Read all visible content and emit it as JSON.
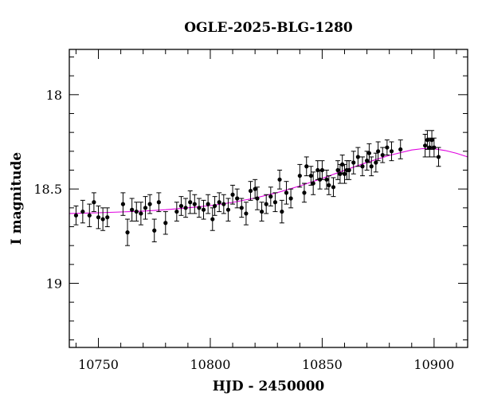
{
  "chart_data": {
    "type": "scatter",
    "title": "OGLE-2025-BLG-1280",
    "xlabel": "HJD - 2450000",
    "ylabel": "I magnitude",
    "xlim": [
      10737,
      10915
    ],
    "ylim": [
      19.34,
      17.76
    ],
    "y_inverted": true,
    "xticks_major": [
      10750,
      10800,
      10850,
      10900
    ],
    "xtick_labels": [
      "10750",
      "10800",
      "10850",
      "10900"
    ],
    "xticks_minor_step": 10,
    "yticks_major": [
      18,
      18.5,
      19
    ],
    "ytick_labels": [
      "18",
      "18.5",
      "19"
    ],
    "yticks_minor_step": 0.1,
    "grid": false,
    "colors": {
      "points": "#000000",
      "model": "#e000e0"
    },
    "series": [
      {
        "kind": "points_with_errorbars",
        "x": [
          10740,
          10743,
          10746,
          10748,
          10750,
          10752,
          10754,
          10761,
          10763,
          10765,
          10767,
          10769,
          10771,
          10773,
          10775,
          10777,
          10780,
          10785,
          10787,
          10789,
          10791,
          10793,
          10795,
          10797,
          10799,
          10801,
          10802,
          10804,
          10806,
          10808,
          10810,
          10812,
          10814,
          10816,
          10818,
          10820,
          10821,
          10823,
          10825,
          10827,
          10829,
          10831,
          10832,
          10834,
          10836,
          10840,
          10842,
          10843,
          10845,
          10846,
          10848,
          10849,
          10850,
          10852,
          10853,
          10855,
          10857,
          10858,
          10859,
          10860,
          10861,
          10862,
          10864,
          10866,
          10868,
          10870,
          10871,
          10872,
          10874,
          10875,
          10877,
          10879,
          10881,
          10885,
          10896,
          10897,
          10898,
          10899,
          10900,
          10902
        ],
        "y": [
          18.64,
          18.62,
          18.64,
          18.57,
          18.65,
          18.66,
          18.65,
          18.58,
          18.73,
          18.61,
          18.62,
          18.63,
          18.6,
          18.58,
          18.72,
          18.57,
          18.68,
          18.62,
          18.59,
          18.6,
          18.57,
          18.58,
          18.6,
          18.61,
          18.58,
          18.66,
          18.59,
          18.57,
          18.58,
          18.61,
          18.53,
          18.55,
          18.6,
          18.63,
          18.51,
          18.5,
          18.55,
          18.62,
          18.58,
          18.54,
          18.57,
          18.45,
          18.62,
          18.52,
          18.55,
          18.43,
          18.52,
          18.38,
          18.43,
          18.47,
          18.4,
          18.45,
          18.4,
          18.45,
          18.48,
          18.49,
          18.4,
          18.42,
          18.37,
          18.42,
          18.4,
          18.4,
          18.36,
          18.33,
          18.38,
          18.35,
          18.31,
          18.38,
          18.36,
          18.3,
          18.32,
          18.28,
          18.3,
          18.29,
          18.27,
          18.24,
          18.28,
          18.24,
          18.28,
          18.33
        ],
        "err": [
          0.05,
          0.06,
          0.06,
          0.05,
          0.06,
          0.06,
          0.05,
          0.06,
          0.07,
          0.06,
          0.05,
          0.06,
          0.06,
          0.05,
          0.06,
          0.05,
          0.06,
          0.05,
          0.05,
          0.05,
          0.06,
          0.05,
          0.05,
          0.05,
          0.05,
          0.06,
          0.05,
          0.05,
          0.05,
          0.06,
          0.05,
          0.05,
          0.05,
          0.06,
          0.05,
          0.05,
          0.06,
          0.05,
          0.05,
          0.05,
          0.05,
          0.05,
          0.06,
          0.06,
          0.05,
          0.06,
          0.05,
          0.05,
          0.05,
          0.06,
          0.05,
          0.05,
          0.05,
          0.05,
          0.05,
          0.05,
          0.05,
          0.05,
          0.05,
          0.05,
          0.05,
          0.05,
          0.06,
          0.05,
          0.05,
          0.05,
          0.05,
          0.05,
          0.05,
          0.05,
          0.04,
          0.04,
          0.05,
          0.05,
          0.06,
          0.05,
          0.05,
          0.05,
          0.05,
          0.05
        ]
      },
      {
        "kind": "model_curve",
        "x": [
          10737,
          10750,
          10760,
          10770,
          10780,
          10790,
          10800,
          10810,
          10820,
          10830,
          10840,
          10850,
          10860,
          10870,
          10880,
          10890,
          10895,
          10900,
          10905,
          10910,
          10915
        ],
        "y": [
          18.63,
          18.626,
          18.622,
          18.617,
          18.61,
          18.6,
          18.588,
          18.571,
          18.548,
          18.519,
          18.484,
          18.444,
          18.401,
          18.359,
          18.322,
          18.293,
          18.286,
          18.287,
          18.296,
          18.311,
          18.33
        ]
      }
    ]
  }
}
